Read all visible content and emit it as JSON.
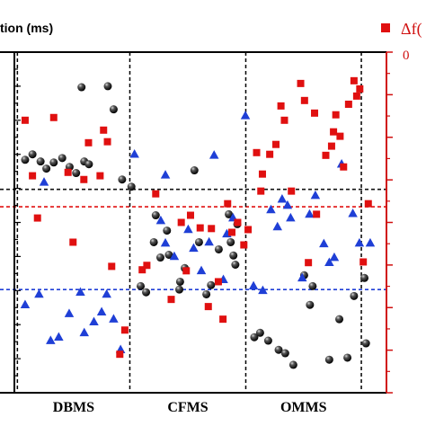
{
  "chart_data": {
    "type": "scatter",
    "title": "",
    "ylabel_left": "tion (ms)",
    "legend_right": "Δf(",
    "right_axis_top_tick": "0",
    "categories": [
      "DBMS",
      "CFMS",
      "OMMS"
    ],
    "x_range": [
      0,
      100
    ],
    "y_range": [
      0,
      100
    ],
    "grid": false,
    "colors": {
      "black_series": "#111111",
      "blue_series": "#1f3fd6",
      "red_series": "#e01010",
      "red_axis": "#d01010",
      "axis": "#000000"
    },
    "reference_lines": [
      {
        "color": "#111111",
        "y": 59.7
      },
      {
        "color": "#e01010",
        "y": 54.6
      },
      {
        "color": "#1f3fd6",
        "y": 30.3
      }
    ],
    "section_dividers_x": [
      4.5,
      33.6,
      63.6,
      93.5
    ],
    "series": [
      {
        "marker": "sphere",
        "points": [
          {
            "x": 21.1,
            "y": 89.7
          },
          {
            "x": 27.9,
            "y": 90.0
          },
          {
            "x": 29.4,
            "y": 83.2
          },
          {
            "x": 6.5,
            "y": 68.4
          },
          {
            "x": 8.4,
            "y": 70.0
          },
          {
            "x": 10.5,
            "y": 67.9
          },
          {
            "x": 12.0,
            "y": 65.8
          },
          {
            "x": 13.9,
            "y": 67.6
          },
          {
            "x": 16.1,
            "y": 68.9
          },
          {
            "x": 18.0,
            "y": 66.3
          },
          {
            "x": 19.7,
            "y": 64.5
          },
          {
            "x": 21.8,
            "y": 67.9
          },
          {
            "x": 23.0,
            "y": 67.1
          },
          {
            "x": 31.6,
            "y": 62.6
          },
          {
            "x": 34.0,
            "y": 60.5
          },
          {
            "x": 40.3,
            "y": 52.1
          },
          {
            "x": 43.2,
            "y": 47.6
          },
          {
            "x": 39.8,
            "y": 44.2
          },
          {
            "x": 41.5,
            "y": 39.7
          },
          {
            "x": 43.7,
            "y": 40.5
          },
          {
            "x": 47.8,
            "y": 36.6
          },
          {
            "x": 46.6,
            "y": 32.6
          },
          {
            "x": 36.4,
            "y": 31.3
          },
          {
            "x": 37.8,
            "y": 29.5
          },
          {
            "x": 46.4,
            "y": 30.3
          },
          {
            "x": 50.3,
            "y": 65.3
          },
          {
            "x": 51.5,
            "y": 44.2
          },
          {
            "x": 53.4,
            "y": 28.9
          },
          {
            "x": 54.6,
            "y": 31.6
          },
          {
            "x": 56.6,
            "y": 42.1
          },
          {
            "x": 59.2,
            "y": 52.4
          },
          {
            "x": 61.4,
            "y": 49.5
          },
          {
            "x": 59.7,
            "y": 44.2
          },
          {
            "x": 60.4,
            "y": 40.3
          },
          {
            "x": 60.9,
            "y": 37.6
          },
          {
            "x": 65.8,
            "y": 16.3
          },
          {
            "x": 67.3,
            "y": 17.6
          },
          {
            "x": 69.4,
            "y": 15.3
          },
          {
            "x": 72.1,
            "y": 12.6
          },
          {
            "x": 73.8,
            "y": 11.6
          },
          {
            "x": 75.9,
            "y": 8.2
          },
          {
            "x": 78.7,
            "y": 34.5
          },
          {
            "x": 80.9,
            "y": 31.3
          },
          {
            "x": 80.2,
            "y": 25.8
          },
          {
            "x": 85.2,
            "y": 9.7
          },
          {
            "x": 87.8,
            "y": 21.6
          },
          {
            "x": 89.9,
            "y": 10.3
          },
          {
            "x": 91.6,
            "y": 28.4
          },
          {
            "x": 94.3,
            "y": 33.7
          },
          {
            "x": 94.7,
            "y": 14.5
          }
        ]
      },
      {
        "marker": "triangle",
        "points": [
          {
            "x": 11.4,
            "y": 61.8
          },
          {
            "x": 6.5,
            "y": 25.8
          },
          {
            "x": 10.1,
            "y": 28.9
          },
          {
            "x": 13.1,
            "y": 15.3
          },
          {
            "x": 15.2,
            "y": 16.3
          },
          {
            "x": 17.9,
            "y": 23.2
          },
          {
            "x": 20.8,
            "y": 29.5
          },
          {
            "x": 21.8,
            "y": 17.6
          },
          {
            "x": 24.3,
            "y": 20.8
          },
          {
            "x": 26.3,
            "y": 23.7
          },
          {
            "x": 27.6,
            "y": 28.9
          },
          {
            "x": 29.4,
            "y": 21.6
          },
          {
            "x": 31.2,
            "y": 12.6
          },
          {
            "x": 34.8,
            "y": 70.0
          },
          {
            "x": 42.8,
            "y": 63.9
          },
          {
            "x": 41.6,
            "y": 50.5
          },
          {
            "x": 42.8,
            "y": 43.9
          },
          {
            "x": 45.1,
            "y": 40.0
          },
          {
            "x": 48.7,
            "y": 47.9
          },
          {
            "x": 50.1,
            "y": 42.4
          },
          {
            "x": 52.1,
            "y": 35.8
          },
          {
            "x": 54.1,
            "y": 44.2
          },
          {
            "x": 55.4,
            "y": 69.7
          },
          {
            "x": 57.8,
            "y": 33.2
          },
          {
            "x": 58.7,
            "y": 46.6
          },
          {
            "x": 60.3,
            "y": 51.3
          },
          {
            "x": 63.5,
            "y": 81.3
          },
          {
            "x": 65.6,
            "y": 31.3
          },
          {
            "x": 68.0,
            "y": 30.0
          },
          {
            "x": 70.1,
            "y": 53.7
          },
          {
            "x": 71.8,
            "y": 48.7
          },
          {
            "x": 73.0,
            "y": 56.8
          },
          {
            "x": 74.4,
            "y": 55.0
          },
          {
            "x": 75.2,
            "y": 51.3
          },
          {
            "x": 78.2,
            "y": 33.7
          },
          {
            "x": 80.1,
            "y": 52.4
          },
          {
            "x": 81.6,
            "y": 57.9
          },
          {
            "x": 83.8,
            "y": 43.7
          },
          {
            "x": 85.2,
            "y": 38.2
          },
          {
            "x": 86.5,
            "y": 39.7
          },
          {
            "x": 88.4,
            "y": 67.1
          },
          {
            "x": 91.3,
            "y": 52.6
          },
          {
            "x": 95.8,
            "y": 43.9
          },
          {
            "x": 93.0,
            "y": 43.9
          }
        ]
      },
      {
        "marker": "square",
        "points": [
          {
            "x": 6.5,
            "y": 80.0
          },
          {
            "x": 8.4,
            "y": 63.7
          },
          {
            "x": 9.7,
            "y": 51.3
          },
          {
            "x": 13.9,
            "y": 80.8
          },
          {
            "x": 17.6,
            "y": 64.7
          },
          {
            "x": 18.9,
            "y": 44.2
          },
          {
            "x": 21.7,
            "y": 62.6
          },
          {
            "x": 22.9,
            "y": 73.4
          },
          {
            "x": 25.9,
            "y": 63.7
          },
          {
            "x": 26.8,
            "y": 77.1
          },
          {
            "x": 27.8,
            "y": 73.7
          },
          {
            "x": 28.9,
            "y": 37.1
          },
          {
            "x": 31.0,
            "y": 11.3
          },
          {
            "x": 32.3,
            "y": 18.4
          },
          {
            "x": 36.8,
            "y": 36.1
          },
          {
            "x": 38.0,
            "y": 37.4
          },
          {
            "x": 40.3,
            "y": 58.4
          },
          {
            "x": 44.3,
            "y": 27.4
          },
          {
            "x": 46.9,
            "y": 50.0
          },
          {
            "x": 48.2,
            "y": 35.8
          },
          {
            "x": 49.3,
            "y": 52.1
          },
          {
            "x": 51.8,
            "y": 48.4
          },
          {
            "x": 53.9,
            "y": 25.3
          },
          {
            "x": 54.7,
            "y": 48.2
          },
          {
            "x": 56.5,
            "y": 32.6
          },
          {
            "x": 57.7,
            "y": 21.6
          },
          {
            "x": 58.9,
            "y": 55.5
          },
          {
            "x": 60.0,
            "y": 47.1
          },
          {
            "x": 61.5,
            "y": 50.0
          },
          {
            "x": 63.1,
            "y": 43.4
          },
          {
            "x": 64.2,
            "y": 47.9
          },
          {
            "x": 66.4,
            "y": 70.5
          },
          {
            "x": 67.9,
            "y": 64.2
          },
          {
            "x": 67.5,
            "y": 59.2
          },
          {
            "x": 69.8,
            "y": 70.0
          },
          {
            "x": 71.4,
            "y": 72.9
          },
          {
            "x": 72.7,
            "y": 84.2
          },
          {
            "x": 73.6,
            "y": 80.0
          },
          {
            "x": 75.4,
            "y": 59.2
          },
          {
            "x": 77.8,
            "y": 90.8
          },
          {
            "x": 78.8,
            "y": 85.8
          },
          {
            "x": 79.8,
            "y": 38.2
          },
          {
            "x": 81.4,
            "y": 82.1
          },
          {
            "x": 81.9,
            "y": 52.4
          },
          {
            "x": 84.3,
            "y": 69.7
          },
          {
            "x": 85.8,
            "y": 72.4
          },
          {
            "x": 86.3,
            "y": 76.6
          },
          {
            "x": 86.9,
            "y": 81.6
          },
          {
            "x": 88.0,
            "y": 75.3
          },
          {
            "x": 88.9,
            "y": 66.3
          },
          {
            "x": 90.2,
            "y": 84.7
          },
          {
            "x": 91.6,
            "y": 91.6
          },
          {
            "x": 92.3,
            "y": 87.1
          },
          {
            "x": 93.1,
            "y": 89.2
          },
          {
            "x": 94.0,
            "y": 38.4
          },
          {
            "x": 95.3,
            "y": 55.5
          }
        ]
      }
    ]
  }
}
